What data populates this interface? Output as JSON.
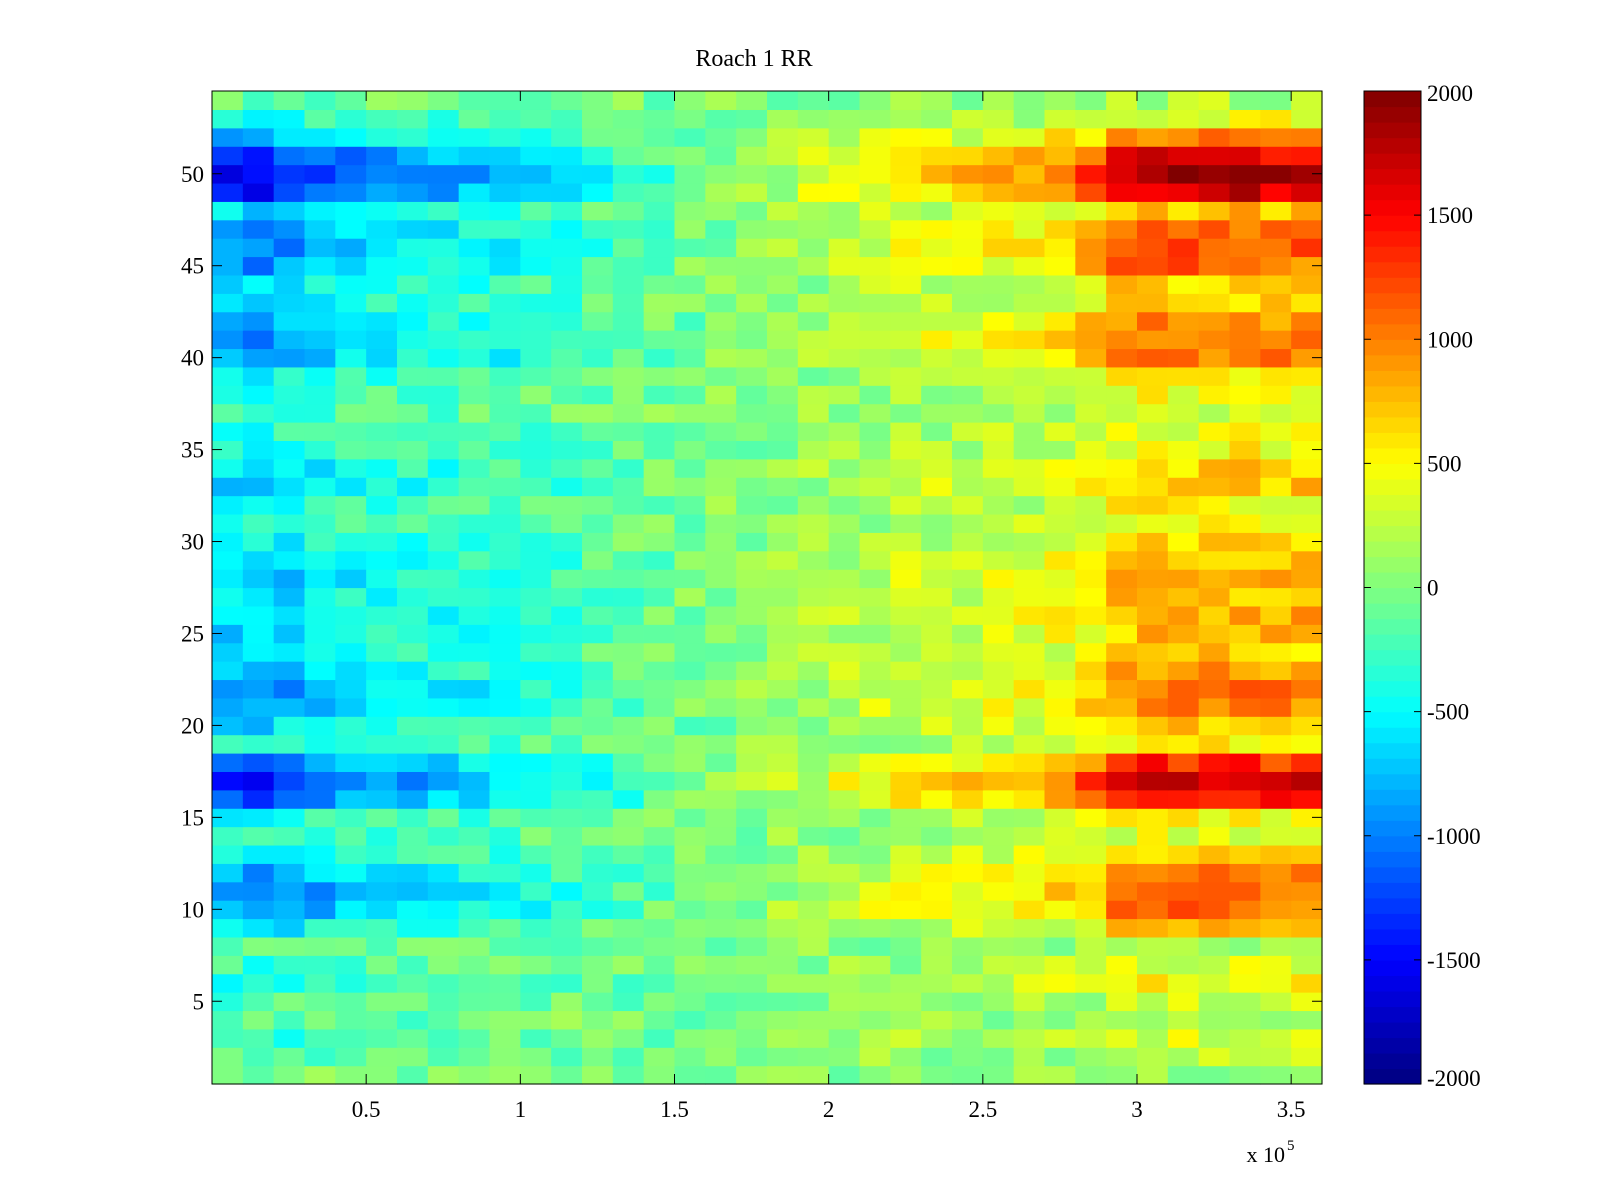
{
  "chart_data": {
    "type": "heatmap",
    "title": "Roach 1 RR",
    "xlabel": "",
    "ylabel": "",
    "x_multiplier": {
      "base": "x 10",
      "exponent": "5"
    },
    "xlim": [
      0,
      3.6
    ],
    "ylim": [
      0.5,
      54.5
    ],
    "x_ticks": [
      0.5,
      1,
      1.5,
      2,
      2.5,
      3,
      3.5
    ],
    "x_tick_labels": [
      "0.5",
      "1",
      "1.5",
      "2",
      "2.5",
      "3",
      "3.5"
    ],
    "y_ticks": [
      5,
      10,
      15,
      20,
      25,
      30,
      35,
      40,
      45,
      50
    ],
    "y_tick_labels": [
      "5",
      "10",
      "15",
      "20",
      "25",
      "30",
      "35",
      "40",
      "45",
      "50"
    ],
    "rows": 54,
    "columns": 36,
    "color_limits": [
      -2000,
      2000
    ],
    "colormap": "jet",
    "colorbar": {
      "ticks": [
        -2000,
        -1500,
        -1000,
        -500,
        0,
        500,
        1000,
        1500,
        2000
      ],
      "tick_labels": [
        "-2000",
        "-1500",
        "-1000",
        "-500",
        "0",
        "500",
        "1000",
        "1500",
        "2000"
      ]
    },
    "column_trend": [
      -700,
      -700,
      -650,
      -600,
      -500,
      -450,
      -420,
      -400,
      -380,
      -350,
      -300,
      -250,
      -200,
      -150,
      -100,
      -50,
      0,
      50,
      100,
      150,
      200,
      250,
      300,
      320,
      340,
      350,
      400,
      500,
      600,
      800,
      850,
      850,
      850,
      850,
      800,
      800
    ],
    "row_strength": [
      0.1,
      0.3,
      0.4,
      0.2,
      0.3,
      0.6,
      0.4,
      0.2,
      0.8,
      1.3,
      1.4,
      1.2,
      0.8,
      0.5,
      0.6,
      1.7,
      2.0,
      1.6,
      0.6,
      0.9,
      1.2,
      1.3,
      1.0,
      0.8,
      0.9,
      1.0,
      0.9,
      1.0,
      0.9,
      0.7,
      0.5,
      0.6,
      0.9,
      0.8,
      0.6,
      0.5,
      0.4,
      0.5,
      0.6,
      1.2,
      1.3,
      1.1,
      0.8,
      0.8,
      1.3,
      1.4,
      1.2,
      0.9,
      2.0,
      2.2,
      1.9,
      1.1,
      0.5,
      0.2
    ]
  }
}
